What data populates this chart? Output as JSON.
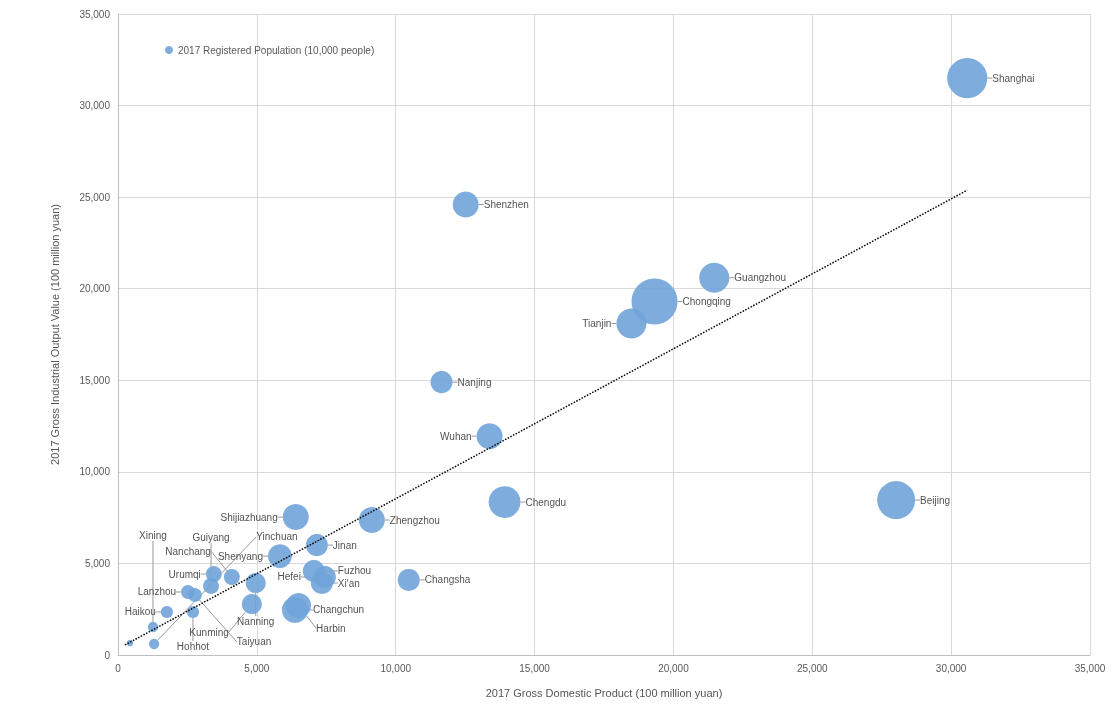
{
  "chart_data": {
    "type": "bubble",
    "xlabel": "2017 Gross Domestic Product (100 million yuan)",
    "ylabel": "2017 Gross Industrial Output Value (100 million yuan)",
    "xlim": [
      0,
      35000
    ],
    "xticks": [
      {
        "value": 0,
        "label": "0"
      },
      {
        "value": 5000,
        "label": "5,000"
      },
      {
        "value": 10000,
        "label": "10,000"
      },
      {
        "value": 15000,
        "label": "15,000"
      },
      {
        "value": 20000,
        "label": "20,000"
      },
      {
        "value": 25000,
        "label": "25,000"
      },
      {
        "value": 30000,
        "label": "30,000"
      },
      {
        "value": 35000,
        "label": "35,000"
      }
    ],
    "ylim": [
      0,
      35000
    ],
    "yticks": [
      {
        "value": 0,
        "label": "0"
      },
      {
        "value": 5000,
        "label": "5,000"
      },
      {
        "value": 10000,
        "label": "10,000"
      },
      {
        "value": 15000,
        "label": "15,000"
      },
      {
        "value": 20000,
        "label": "20,000"
      },
      {
        "value": 25000,
        "label": "25,000"
      },
      {
        "value": 30000,
        "label": "30,000"
      },
      {
        "value": 35000,
        "label": "35,000"
      }
    ],
    "grid": true,
    "legend": "top left",
    "marker": "circle",
    "series": [
      {
        "name": "2017 Registered Population (10,000 people)",
        "color": "#6fa3d9",
        "x": [
          30580,
          12520,
          21470,
          19320,
          18490,
          11650,
          13380,
          28020,
          13920,
          9140,
          6400,
          7160,
          5830,
          7050,
          7450,
          7340,
          10470,
          4960,
          6370,
          6500,
          4820,
          3450,
          4100,
          3350,
          2520,
          2770,
          2700,
          1760,
          1260,
          1300,
          430
        ],
        "values": [
          31500,
          24600,
          20600,
          19300,
          18100,
          14900,
          11950,
          8460,
          8350,
          7370,
          7530,
          6000,
          5400,
          4590,
          4260,
          3930,
          4100,
          3930,
          2460,
          2700,
          2780,
          4420,
          4260,
          3770,
          3440,
          3280,
          2350,
          2350,
          1530,
          600,
          650
        ],
        "sizes": [
          0.76,
          0.32,
          0.43,
          1,
          0.43,
          0.23,
          0.32,
          0.68,
          0.48,
          0.32,
          0.32,
          0.23,
          0.27,
          0.23,
          0.23,
          0.23,
          0.23,
          0.19,
          0.32,
          0.3,
          0.19,
          0.12,
          0.12,
          0.12,
          0.09,
          0.09,
          0.07,
          0.07,
          0.05,
          0.05,
          0.02
        ],
        "value_labels": [
          "Shanghai",
          "Shenzhen",
          "Guangzhou",
          "Chongqing",
          "Tianjin",
          "Nanjing",
          "Wuhan",
          "Beijing",
          "Chengdu",
          "Zhengzhou",
          "Shijiazhuang",
          "Jinan",
          "Shenyang",
          "Fuzhou",
          "Hefei",
          "Xi'an",
          "Changsha",
          "Nanning",
          "Changchun",
          "Harbin",
          "Kunming",
          "Urumqi",
          "Nanchang",
          "Guiyang",
          "Lanzhou",
          "Taiyuan",
          "Hohhot",
          "Haikou",
          "Xining",
          "Yinchuan",
          null
        ]
      },
      {
        "type": "line",
        "color": "#000000",
        "line_style": "dotted",
        "marker": "none",
        "x": [
          250,
          30580
        ],
        "values": [
          550,
          25380
        ]
      }
    ]
  }
}
